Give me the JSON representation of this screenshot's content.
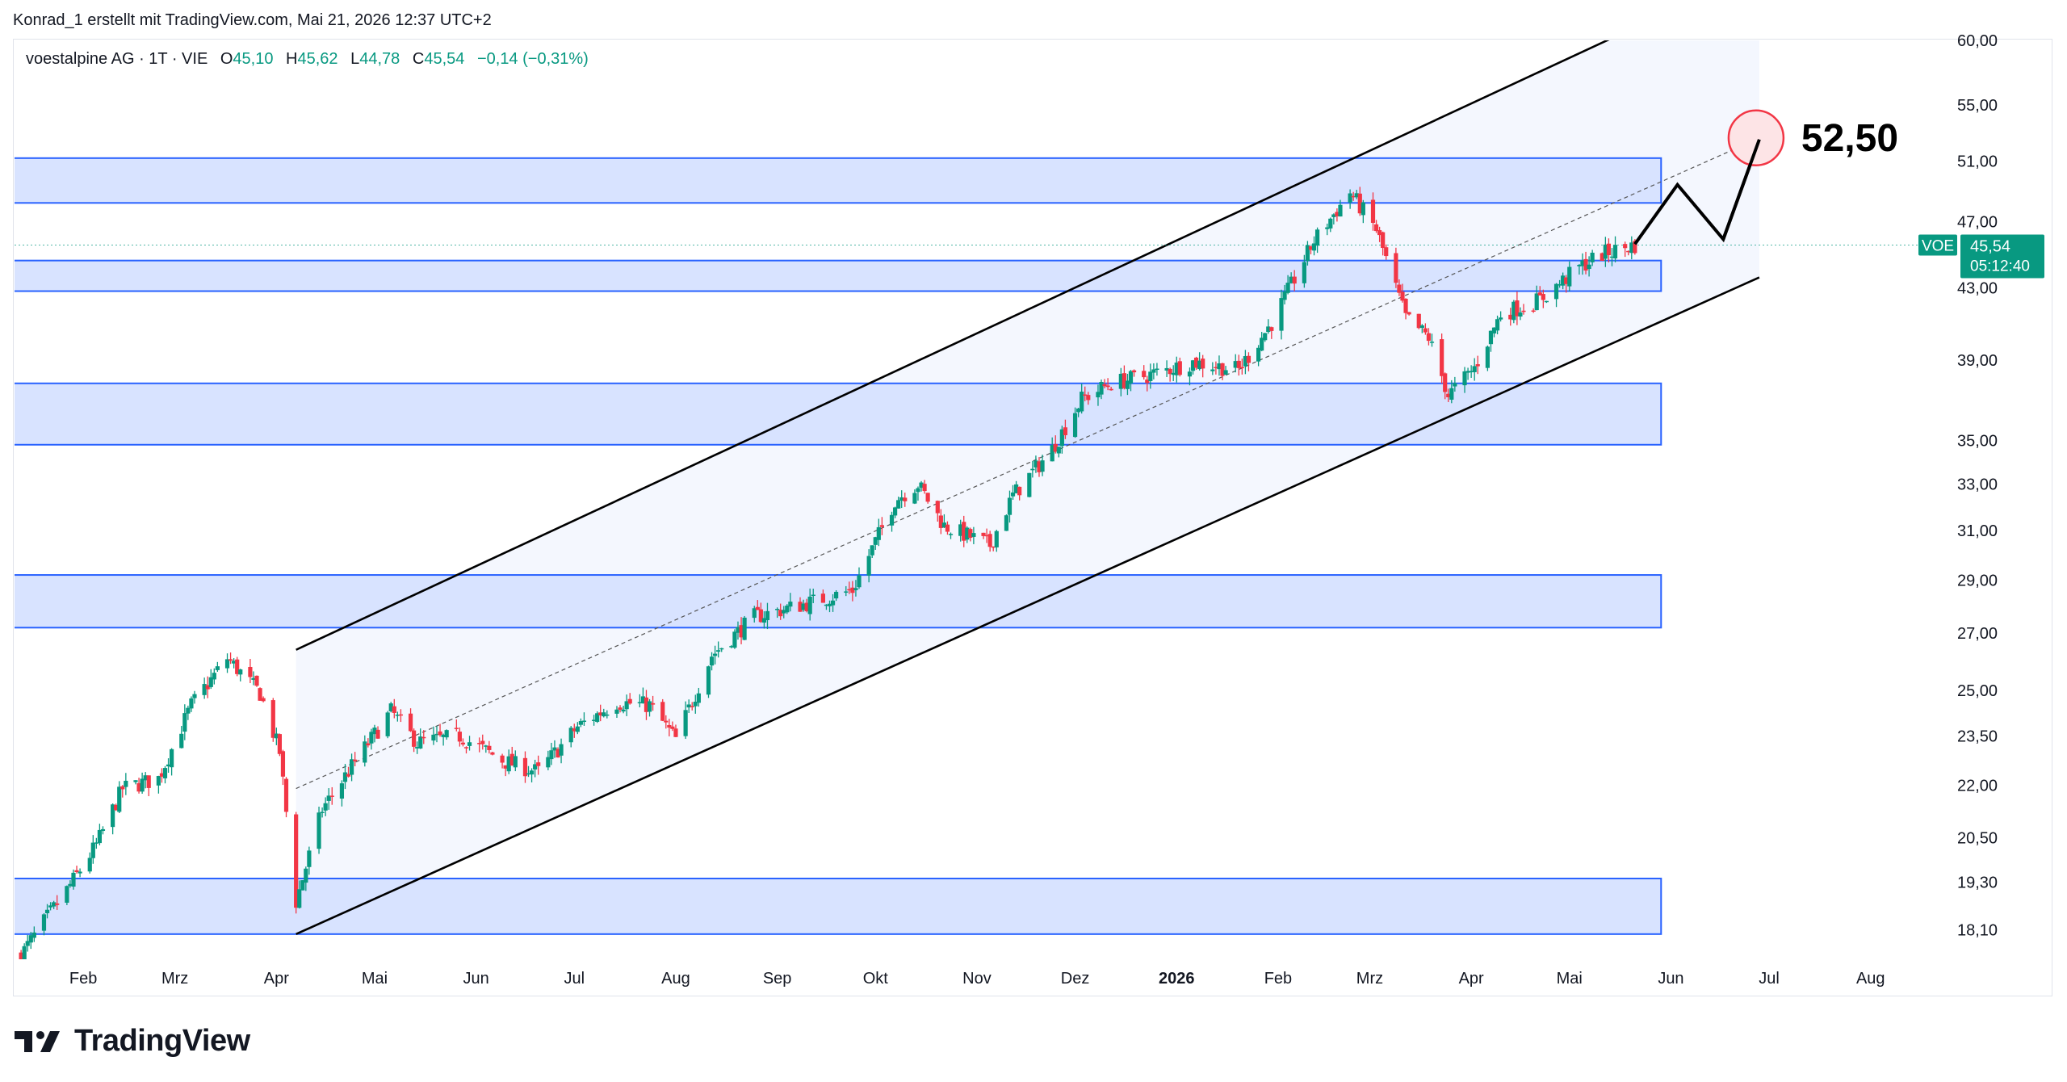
{
  "header": {
    "attribution": "Konrad_1 erstellt mit TradingView.com, Mai 21, 2026 12:37 UTC+2"
  },
  "legend": {
    "symbol": "voestalpine AG · 1T · VIE",
    "o_label": "O",
    "o_value": "45,10",
    "h_label": "H",
    "h_value": "45,62",
    "l_label": "L",
    "l_value": "44,78",
    "c_label": "C",
    "c_value": "45,54",
    "change": "−0,14 (−0,31%)"
  },
  "price_tag": {
    "ticker": "VOE",
    "price": "45,54",
    "countdown": "05:12:40"
  },
  "target_label": "52,50",
  "footer": {
    "brand": "TradingView"
  },
  "colors": {
    "up": "#089981",
    "down": "#f23645",
    "zone_fill": "#d6e2ff",
    "zone_border": "#2962ff",
    "channel_fill": "#f4f7fe",
    "target_circle": "#f23645"
  },
  "chart_data": {
    "type": "candlestick",
    "symbol": "voestalpine AG",
    "interval": "1T",
    "exchange": "VIE",
    "y_axis_scale": "log",
    "y_ticks": [
      "18,10",
      "19,30",
      "20,50",
      "22,00",
      "23,50",
      "25,00",
      "27,00",
      "29,00",
      "31,00",
      "33,00",
      "35,00",
      "39,00",
      "43,00",
      "47,00",
      "51,00",
      "55,00",
      "60,00"
    ],
    "x_ticks": [
      "Feb",
      "Mrz",
      "Apr",
      "Mai",
      "Jun",
      "Jul",
      "Aug",
      "Sep",
      "Okt",
      "Nov",
      "Dez",
      "2026",
      "Feb",
      "Mrz",
      "Apr",
      "Mai",
      "Jun",
      "Jul",
      "Aug"
    ],
    "x_range": [
      "2025-01-11",
      "2026-08-24"
    ],
    "y_range": [
      17.4,
      60.0
    ],
    "close_path": [
      [
        "2025-01-13",
        17.5
      ],
      [
        "2025-01-20",
        18.3
      ],
      [
        "2025-01-27",
        19.1
      ],
      [
        "2025-02-05",
        20.3
      ],
      [
        "2025-02-13",
        21.9
      ],
      [
        "2025-02-24",
        22.2
      ],
      [
        "2025-03-06",
        24.5
      ],
      [
        "2025-03-17",
        26.1
      ],
      [
        "2025-03-27",
        24.9
      ],
      [
        "2025-04-02",
        23.0
      ],
      [
        "2025-04-07",
        18.8
      ],
      [
        "2025-04-15",
        21.3
      ],
      [
        "2025-04-25",
        22.7
      ],
      [
        "2025-05-06",
        24.3
      ],
      [
        "2025-05-14",
        23.3
      ],
      [
        "2025-05-27",
        23.5
      ],
      [
        "2025-06-10",
        22.7
      ],
      [
        "2025-06-20",
        22.4
      ],
      [
        "2025-07-02",
        23.8
      ],
      [
        "2025-07-14",
        24.6
      ],
      [
        "2025-07-24",
        24.5
      ],
      [
        "2025-08-01",
        23.4
      ],
      [
        "2025-08-12",
        26.2
      ],
      [
        "2025-08-25",
        27.6
      ],
      [
        "2025-09-10",
        28.1
      ],
      [
        "2025-09-24",
        28.6
      ],
      [
        "2025-10-07",
        32.3
      ],
      [
        "2025-10-14",
        33.0
      ],
      [
        "2025-10-22",
        31.2
      ],
      [
        "2025-11-05",
        30.4
      ],
      [
        "2025-11-12",
        32.5
      ],
      [
        "2025-11-24",
        34.6
      ],
      [
        "2025-12-03",
        37.0
      ],
      [
        "2025-12-12",
        37.8
      ],
      [
        "2025-12-23",
        38.2
      ],
      [
        "2026-01-06",
        38.9
      ],
      [
        "2026-01-20",
        38.5
      ],
      [
        "2026-01-30",
        41.0
      ],
      [
        "2026-02-12",
        45.8
      ],
      [
        "2026-02-23",
        48.9
      ],
      [
        "2026-03-03",
        46.5
      ],
      [
        "2026-03-12",
        41.3
      ],
      [
        "2026-03-19",
        40.2
      ],
      [
        "2026-03-25",
        37.2
      ],
      [
        "2026-04-02",
        38.6
      ],
      [
        "2026-04-10",
        41.5
      ],
      [
        "2026-04-22",
        42.3
      ],
      [
        "2026-05-04",
        44.2
      ],
      [
        "2026-05-11",
        45.0
      ],
      [
        "2026-05-21",
        45.54
      ]
    ],
    "last": {
      "open": 45.1,
      "high": 45.62,
      "low": 44.78,
      "close": 45.54,
      "change": -0.14,
      "change_pct": -0.31
    },
    "zones": [
      {
        "low": 48.2,
        "high": 51.2
      },
      {
        "low": 42.8,
        "high": 44.6
      },
      {
        "low": 34.8,
        "high": 37.8
      },
      {
        "low": 27.2,
        "high": 29.2
      },
      {
        "low": 18.0,
        "high": 19.4
      }
    ],
    "channel": {
      "start": "2025-04-07",
      "end": "2026-06-28",
      "upper_start": 26.4,
      "lower_start": 18.0,
      "upper_end": 66.0,
      "lower_end": 43.6
    },
    "midline": {
      "start": [
        "2025-04-07",
        21.9
      ],
      "end": [
        "2026-06-28",
        52.6
      ]
    },
    "projection": [
      [
        "2026-05-21",
        45.6
      ],
      [
        "2026-06-03",
        49.4
      ],
      [
        "2026-06-17",
        45.9
      ],
      [
        "2026-06-28",
        52.5
      ]
    ],
    "target": {
      "date": "2026-06-28",
      "value": 52.5
    }
  }
}
